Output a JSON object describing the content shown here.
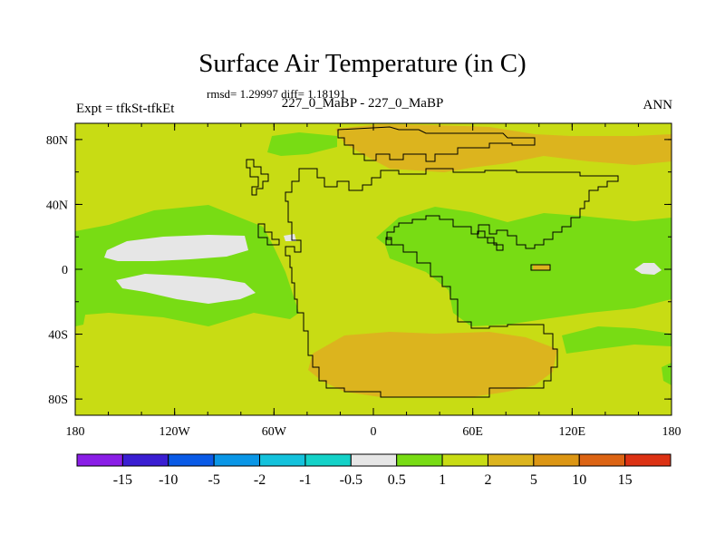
{
  "title": "Surface Air Temperature (in C)",
  "stats_line": "rmsd= 1.29997 diff= 1.18191",
  "left_label": "Expt = tfkSt-tfkEt",
  "center_label": "227_0_MaBP - 227_0_MaBP",
  "right_label": "ANN",
  "x_ticks": [
    "180",
    "120W",
    "60W",
    "0",
    "60E",
    "120E",
    "180"
  ],
  "y_ticks": [
    "80N",
    "40N",
    "0",
    "40S",
    "80S"
  ],
  "colorbar": {
    "labels": [
      "-15",
      "-10",
      "-5",
      "-2",
      "-1",
      "-0.5",
      "0.5",
      "1",
      "2",
      "5",
      "10",
      "15"
    ],
    "colors": [
      "#8a1ee6",
      "#3a1ed2",
      "#0a5ae6",
      "#0a96e6",
      "#14c2dc",
      "#14d2c8",
      "#e6e6e6",
      "#78dc14",
      "#c8dc14",
      "#dcb41e",
      "#dc9614",
      "#dc6414",
      "#dc3214"
    ]
  },
  "map_colors": {
    "warm": "#dcb41e",
    "mid": "#c8dc14",
    "cool": "#78dc14",
    "neutral": "#e6e6e6"
  }
}
